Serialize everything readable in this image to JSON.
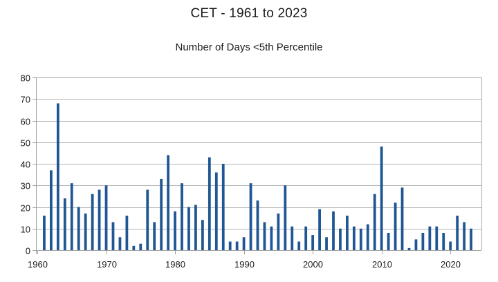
{
  "chart_data": {
    "type": "bar",
    "title": "CET - 1961 to 2023",
    "subtitle": "Number of Days <5th Percentile",
    "xlabel": "",
    "ylabel": "",
    "ylim": [
      0,
      80
    ],
    "y_ticks": [
      "0",
      "10",
      "20",
      "30",
      "40",
      "50",
      "60",
      "70",
      "80"
    ],
    "x_ticks": [
      "1960",
      "1970",
      "1980",
      "1990",
      "2000",
      "2010",
      "2020"
    ],
    "xlim": [
      1959.8,
      2024.5
    ],
    "grid": true,
    "legend": "none",
    "colors": {
      "bar": "#1f5693",
      "grid": "#b3b3b3",
      "axis": "#a0a0a0"
    },
    "x": [
      1961,
      1962,
      1963,
      1964,
      1965,
      1966,
      1967,
      1968,
      1969,
      1970,
      1971,
      1972,
      1973,
      1974,
      1975,
      1976,
      1977,
      1978,
      1979,
      1980,
      1981,
      1982,
      1983,
      1984,
      1985,
      1986,
      1987,
      1988,
      1989,
      1990,
      1991,
      1992,
      1993,
      1994,
      1995,
      1996,
      1997,
      1998,
      1999,
      2000,
      2001,
      2002,
      2003,
      2004,
      2005,
      2006,
      2007,
      2008,
      2009,
      2010,
      2011,
      2012,
      2013,
      2014,
      2015,
      2016,
      2017,
      2018,
      2019,
      2020,
      2021,
      2022,
      2023
    ],
    "values": [
      16,
      37,
      68,
      24,
      31,
      20,
      17,
      26,
      28,
      30,
      13,
      6,
      16,
      2,
      3,
      28,
      13,
      33,
      44,
      18,
      31,
      20,
      21,
      14,
      43,
      36,
      40,
      4,
      4,
      6,
      31,
      23,
      13,
      11,
      17,
      30,
      11,
      4,
      11,
      7,
      19,
      6,
      18,
      10,
      16,
      11,
      10,
      12,
      26,
      48,
      8,
      22,
      29,
      1,
      5,
      8,
      11,
      11,
      8,
      4,
      16,
      13,
      10
    ]
  }
}
